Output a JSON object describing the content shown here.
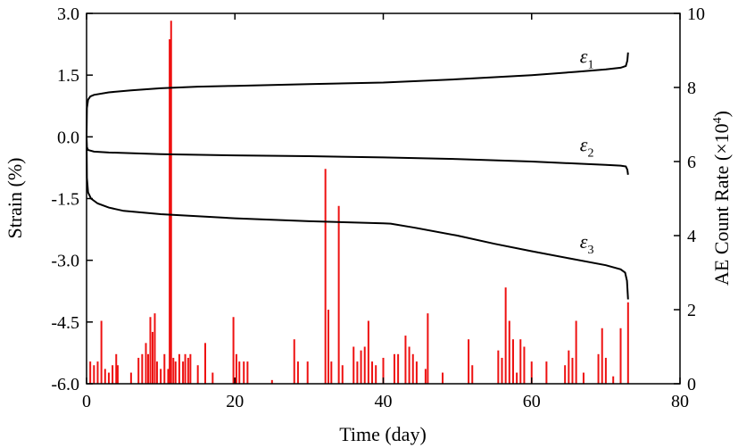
{
  "chart_data": {
    "type": "line",
    "xlabel": "Time  (day)",
    "ylabel_left": "Strain (%)",
    "ylabel_right_text": "AE Count Rate  (×10",
    "ylabel_right_exp": "4",
    "ylabel_right_close": ")",
    "xlim": [
      0,
      80
    ],
    "ylim_left": [
      -6.0,
      3.0
    ],
    "ylim_right": [
      0,
      10
    ],
    "x_ticks": [
      0,
      20,
      40,
      60,
      80
    ],
    "x_tick_labels": [
      "0",
      "20",
      "40",
      "60",
      "80"
    ],
    "y_left_ticks": [
      3.0,
      1.5,
      0.0,
      -1.5,
      -3.0,
      -4.5,
      -6.0
    ],
    "y_left_tick_labels": [
      "3.0",
      "1.5",
      "0.0",
      "-1.5",
      "-3.0",
      "-4.5",
      "-6.0"
    ],
    "y_right_ticks": [
      10,
      8,
      6,
      4,
      2,
      0
    ],
    "y_right_tick_labels": [
      "10",
      "8",
      "6",
      "4",
      "2",
      "0"
    ],
    "strain_series": [
      {
        "name_base": "ε",
        "name_sub": "1",
        "label_x": 66.5,
        "label_y": 1.8,
        "points": [
          [
            0,
            0
          ],
          [
            0.05,
            0.7
          ],
          [
            0.2,
            0.9
          ],
          [
            0.5,
            0.98
          ],
          [
            1,
            1.02
          ],
          [
            3,
            1.08
          ],
          [
            6,
            1.13
          ],
          [
            10,
            1.18
          ],
          [
            15,
            1.22
          ],
          [
            20,
            1.24
          ],
          [
            30,
            1.28
          ],
          [
            40,
            1.32
          ],
          [
            50,
            1.4
          ],
          [
            60,
            1.5
          ],
          [
            66,
            1.58
          ],
          [
            70,
            1.64
          ],
          [
            72,
            1.68
          ],
          [
            72.7,
            1.72
          ],
          [
            72.9,
            1.85
          ],
          [
            73,
            2.05
          ]
        ]
      },
      {
        "name_base": "ε",
        "name_sub": "2",
        "label_x": 66.5,
        "label_y": -0.35,
        "points": [
          [
            0,
            0
          ],
          [
            0.05,
            -0.25
          ],
          [
            0.2,
            -0.32
          ],
          [
            1,
            -0.36
          ],
          [
            3,
            -0.38
          ],
          [
            10,
            -0.42
          ],
          [
            20,
            -0.45
          ],
          [
            30,
            -0.47
          ],
          [
            40,
            -0.5
          ],
          [
            50,
            -0.54
          ],
          [
            60,
            -0.6
          ],
          [
            66,
            -0.65
          ],
          [
            70,
            -0.68
          ],
          [
            72,
            -0.7
          ],
          [
            72.7,
            -0.72
          ],
          [
            72.9,
            -0.8
          ],
          [
            73,
            -0.92
          ]
        ]
      },
      {
        "name_base": "ε",
        "name_sub": "3",
        "label_x": 66.5,
        "label_y": -2.7,
        "points": [
          [
            0,
            0
          ],
          [
            0.05,
            -1.0
          ],
          [
            0.2,
            -1.35
          ],
          [
            0.6,
            -1.5
          ],
          [
            1.5,
            -1.62
          ],
          [
            3,
            -1.72
          ],
          [
            5,
            -1.8
          ],
          [
            10,
            -1.88
          ],
          [
            20,
            -1.98
          ],
          [
            30,
            -2.05
          ],
          [
            40,
            -2.1
          ],
          [
            41,
            -2.11
          ],
          [
            44,
            -2.2
          ],
          [
            50,
            -2.4
          ],
          [
            55,
            -2.6
          ],
          [
            60,
            -2.78
          ],
          [
            65,
            -2.95
          ],
          [
            70,
            -3.12
          ],
          [
            72,
            -3.22
          ],
          [
            72.6,
            -3.3
          ],
          [
            72.85,
            -3.5
          ],
          [
            73,
            -3.95
          ]
        ]
      }
    ],
    "ae_count_rate": {
      "x": [
        0.5,
        1,
        1.5,
        2,
        2.5,
        3,
        3.5,
        4,
        4.2,
        6,
        7,
        7.5,
        8,
        8.3,
        8.6,
        8.9,
        9.2,
        9.5,
        10,
        10.5,
        11,
        11.2,
        11.4,
        11.7,
        12,
        12.5,
        13,
        13.3,
        13.7,
        14,
        15,
        16,
        17,
        19.8,
        20.2,
        20.6,
        21.2,
        21.7,
        25,
        28,
        28.5,
        29.8,
        32.2,
        32.6,
        33,
        34,
        34.5,
        36,
        36.5,
        37,
        37.5,
        38,
        38.5,
        39,
        40,
        41.5,
        42,
        43,
        43.5,
        44,
        44.5,
        45.7,
        46,
        48,
        51.5,
        52,
        55.5,
        56,
        56.5,
        57,
        57.5,
        58,
        58.5,
        59,
        60,
        62,
        64.5,
        65,
        65.5,
        66,
        67,
        69,
        69.5,
        70,
        71,
        72,
        73
      ],
      "values": [
        0.6,
        0.5,
        0.6,
        1.7,
        0.4,
        0.3,
        0.5,
        0.8,
        0.5,
        0.3,
        0.7,
        0.8,
        1.1,
        0.8,
        1.8,
        1.4,
        1.9,
        0.6,
        0.4,
        0.8,
        0.4,
        9.3,
        9.8,
        0.7,
        0.6,
        0.8,
        0.6,
        0.8,
        0.7,
        0.8,
        0.5,
        1.1,
        0.3,
        1.8,
        0.8,
        0.6,
        0.6,
        0.6,
        0.1,
        1.2,
        0.6,
        0.6,
        5.8,
        2.0,
        0.6,
        4.8,
        0.5,
        1.0,
        0.6,
        0.9,
        1.0,
        1.7,
        0.6,
        0.5,
        0.7,
        0.8,
        0.8,
        1.3,
        1.0,
        0.8,
        0.6,
        0.4,
        1.9,
        0.3,
        1.2,
        0.5,
        0.9,
        0.7,
        2.6,
        1.7,
        1.2,
        0.3,
        1.2,
        1.0,
        0.6,
        0.6,
        0.5,
        0.9,
        0.7,
        1.7,
        0.3,
        0.8,
        1.5,
        0.7,
        0.2,
        1.5,
        2.2
      ]
    }
  }
}
